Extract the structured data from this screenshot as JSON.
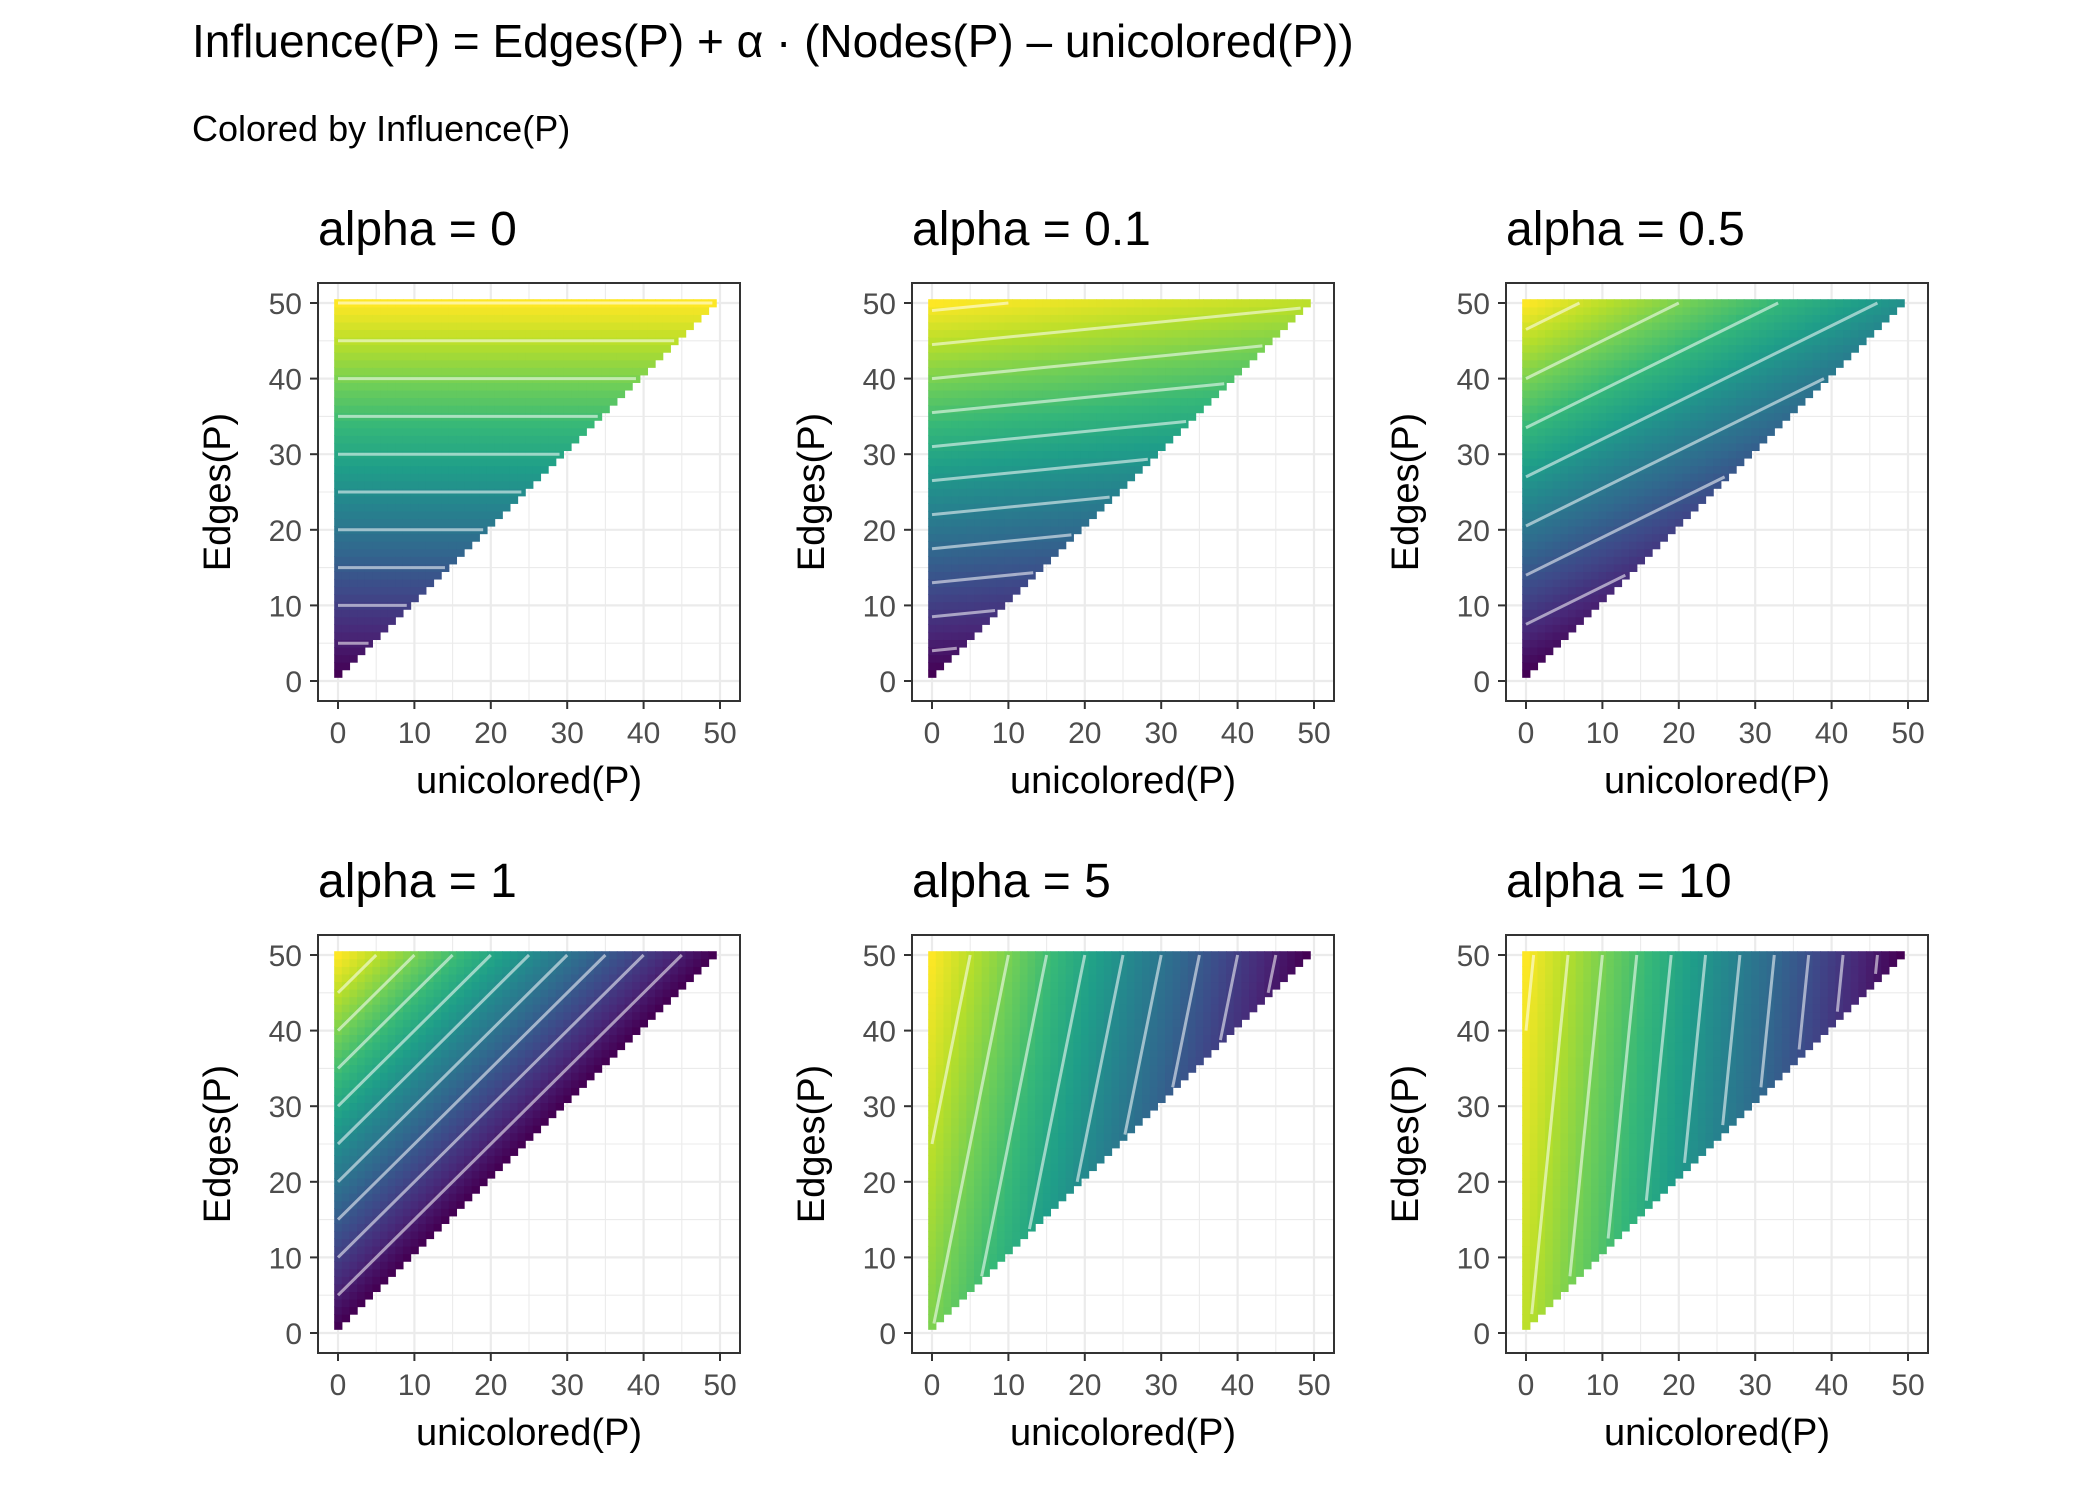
{
  "title": "Influence(P) = Edges(P) + α · (Nodes(P) – unicolored(P))",
  "subtitle": "Colored by Influence(P)",
  "chart_data": {
    "type": "heatmap",
    "description_formula": "Influence = Edges + alpha * (Nodes - unicolored)",
    "facet_variable": "alpha",
    "colormap": "viridis",
    "colors": {
      "viridis": [
        "#440154",
        "#482878",
        "#3e4989",
        "#31688e",
        "#26828e",
        "#1f9e89",
        "#35b779",
        "#6ece58",
        "#b5de2b",
        "#fde725"
      ],
      "contour_line": "#ffffff",
      "panel_border": "#333333",
      "grid": "#ebebeb"
    },
    "xlabel": "unicolored(P)",
    "ylabel": "Edges(P)",
    "xlim": [
      0,
      50
    ],
    "ylim": [
      0,
      50
    ],
    "x_ticks": [
      "0",
      "10",
      "20",
      "30",
      "40",
      "50"
    ],
    "y_ticks": [
      "0",
      "10",
      "20",
      "30",
      "40",
      "50"
    ],
    "domain_note": "cells where Edges(P) >= unicolored(P) + 1",
    "grid": true,
    "nodes_approx": 50,
    "panels": [
      {
        "label": "alpha = 0",
        "alpha": 0,
        "contour_step": 5
      },
      {
        "label": "alpha = 0.1",
        "alpha": 0.1,
        "contour_step": 4.5
      },
      {
        "label": "alpha = 0.5",
        "alpha": 0.5,
        "contour_step": 6.5
      },
      {
        "label": "alpha = 1",
        "alpha": 1,
        "contour_step": 5
      },
      {
        "label": "alpha = 5",
        "alpha": 5,
        "contour_step": 25
      },
      {
        "label": "alpha = 10",
        "alpha": 10,
        "contour_step": 45
      }
    ]
  }
}
